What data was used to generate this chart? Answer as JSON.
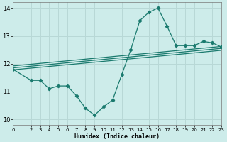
{
  "xlabel": "Humidex (Indice chaleur)",
  "xlim": [
    0,
    23
  ],
  "ylim": [
    9.8,
    14.2
  ],
  "yticks": [
    10,
    11,
    12,
    13,
    14
  ],
  "xticks": [
    0,
    2,
    3,
    4,
    5,
    6,
    7,
    8,
    9,
    10,
    11,
    12,
    13,
    14,
    15,
    16,
    17,
    18,
    19,
    20,
    21,
    22,
    23
  ],
  "bg_color": "#cdecea",
  "grid_color": "#b8d8d6",
  "line_color": "#1a7a6e",
  "curve_x": [
    0,
    2,
    3,
    4,
    5,
    6,
    7,
    8,
    9,
    10,
    11,
    12,
    13,
    14,
    15,
    16,
    17,
    18,
    19,
    20,
    21,
    22,
    23
  ],
  "curve_y": [
    11.8,
    11.4,
    11.4,
    11.1,
    11.2,
    11.2,
    10.85,
    10.4,
    10.15,
    10.45,
    10.7,
    11.6,
    12.5,
    13.55,
    13.85,
    14.0,
    13.35,
    12.65,
    12.65,
    12.65,
    12.8,
    12.75,
    12.6
  ],
  "reg_lines": [
    {
      "x0": 0,
      "x1": 23,
      "y0": 11.78,
      "y1": 12.48
    },
    {
      "x0": 0,
      "x1": 23,
      "y0": 11.85,
      "y1": 12.55
    },
    {
      "x0": 0,
      "x1": 23,
      "y0": 11.92,
      "y1": 12.62
    }
  ]
}
